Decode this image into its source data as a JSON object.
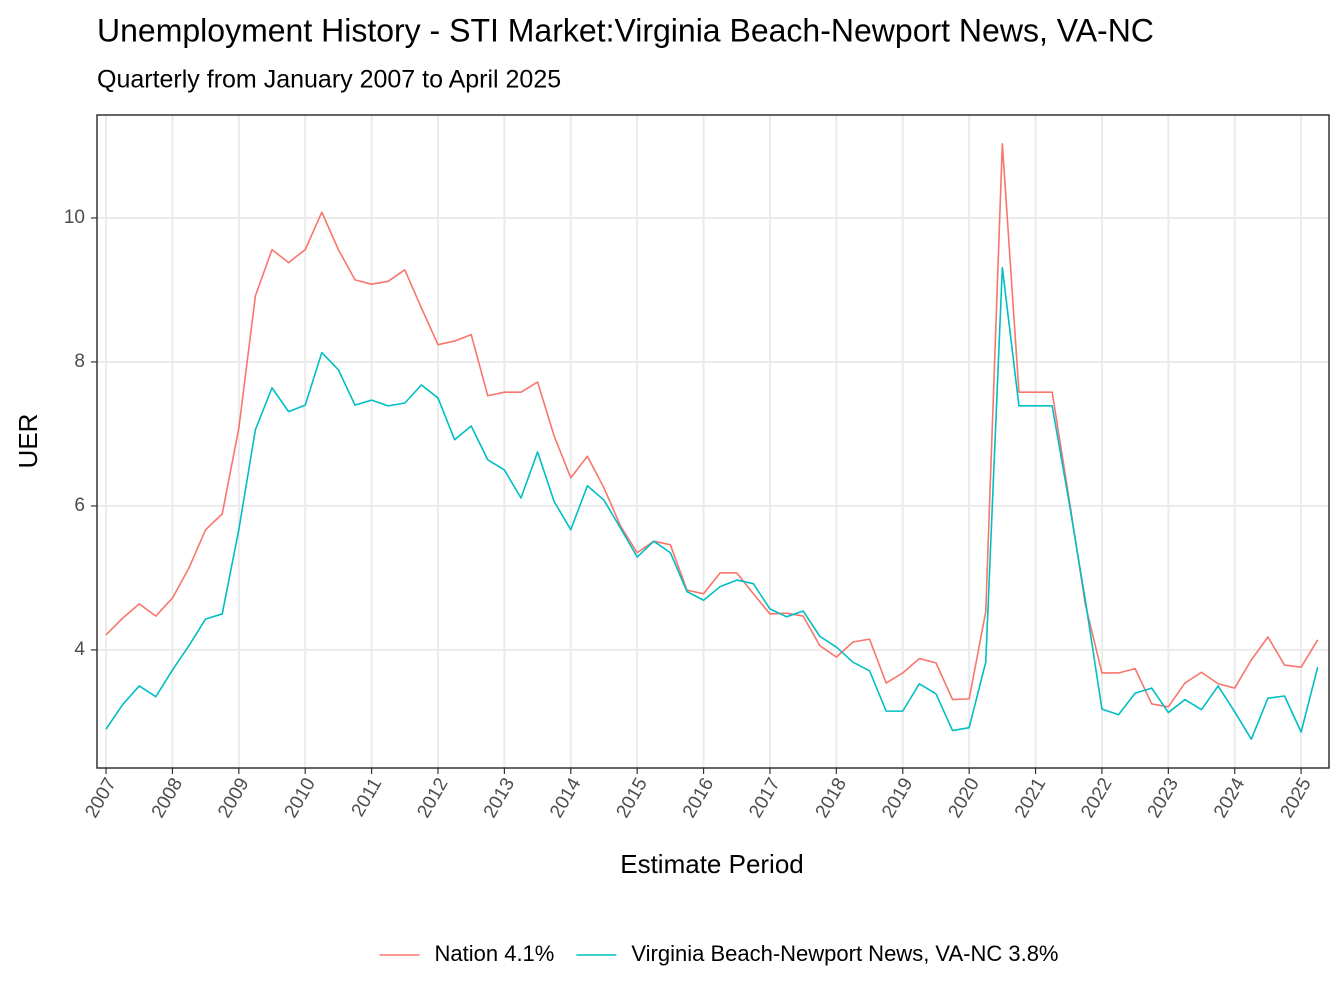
{
  "chart_data": {
    "type": "line",
    "title": "Unemployment History - STI Market:Virginia Beach-Newport News, VA-NC",
    "subtitle": "Quarterly from January 2007 to April 2025",
    "x_label": "Estimate Period",
    "y_label": "UER",
    "x": [
      2007,
      2007.25,
      2007.5,
      2007.75,
      2008,
      2008.25,
      2008.5,
      2008.75,
      2009,
      2009.25,
      2009.5,
      2009.75,
      2010,
      2010.25,
      2010.5,
      2010.75,
      2011,
      2011.25,
      2011.5,
      2011.75,
      2012,
      2012.25,
      2012.5,
      2012.75,
      2013,
      2013.25,
      2013.5,
      2013.75,
      2014,
      2014.25,
      2014.5,
      2014.75,
      2015,
      2015.25,
      2015.5,
      2015.75,
      2016,
      2016.25,
      2016.5,
      2016.75,
      2017,
      2017.25,
      2017.5,
      2017.75,
      2018,
      2018.25,
      2018.5,
      2018.75,
      2019,
      2019.25,
      2019.5,
      2019.75,
      2020,
      2020.25,
      2020.5,
      2020.75,
      2021,
      2021.25,
      2021.5,
      2021.75,
      2022,
      2022.25,
      2022.5,
      2022.75,
      2023,
      2023.25,
      2023.5,
      2023.75,
      2024,
      2024.25,
      2024.5,
      2024.75,
      2025,
      2025.25
    ],
    "series": [
      {
        "name": "Nation 4.1%",
        "color": "#F8766D",
        "values": [
          4.21,
          4.44,
          4.64,
          4.47,
          4.72,
          5.14,
          5.67,
          5.89,
          7.08,
          8.92,
          9.56,
          9.38,
          9.56,
          10.08,
          9.56,
          9.14,
          9.08,
          9.12,
          9.28,
          8.75,
          8.24,
          8.29,
          8.38,
          7.53,
          7.58,
          7.58,
          7.72,
          6.97,
          6.39,
          6.69,
          6.25,
          5.72,
          5.35,
          5.51,
          5.46,
          4.83,
          4.78,
          5.07,
          5.07,
          4.78,
          4.5,
          4.51,
          4.47,
          4.06,
          3.9,
          4.11,
          4.15,
          3.54,
          3.68,
          3.88,
          3.82,
          3.31,
          3.32,
          4.53,
          11.03,
          7.58,
          7.58,
          7.58,
          6.13,
          4.63,
          3.68,
          3.68,
          3.74,
          3.25,
          3.21,
          3.54,
          3.69,
          3.53,
          3.47,
          3.86,
          4.18,
          3.79,
          3.76,
          4.14
        ]
      },
      {
        "name": "Virginia Beach-Newport News, VA-NC 3.8%",
        "color": "#00BFC4",
        "values": [
          2.9,
          3.24,
          3.5,
          3.35,
          3.72,
          4.06,
          4.43,
          4.5,
          5.67,
          7.06,
          7.64,
          7.31,
          7.4,
          8.13,
          7.89,
          7.4,
          7.47,
          7.39,
          7.43,
          7.68,
          7.5,
          6.92,
          7.11,
          6.64,
          6.5,
          6.11,
          6.75,
          6.06,
          5.67,
          6.28,
          6.08,
          5.69,
          5.29,
          5.51,
          5.35,
          4.81,
          4.69,
          4.88,
          4.97,
          4.92,
          4.57,
          4.46,
          4.54,
          4.19,
          4.04,
          3.83,
          3.71,
          3.15,
          3.15,
          3.53,
          3.39,
          2.88,
          2.92,
          3.83,
          9.31,
          7.39,
          7.39,
          7.39,
          6.08,
          4.69,
          3.18,
          3.1,
          3.4,
          3.47,
          3.13,
          3.31,
          3.17,
          3.5,
          3.14,
          2.76,
          3.33,
          3.36,
          2.86,
          3.76
        ]
      }
    ],
    "xlim": [
      2006.864,
      2025.42
    ],
    "ylim": [
      2.36,
      11.43
    ],
    "xticks": [
      2007,
      2008,
      2009,
      2010,
      2011,
      2012,
      2013,
      2014,
      2015,
      2016,
      2017,
      2018,
      2019,
      2020,
      2021,
      2022,
      2023,
      2024,
      2025
    ],
    "yticks": [
      4,
      6,
      8,
      10
    ],
    "grid": true,
    "legend_position": "bottom"
  }
}
